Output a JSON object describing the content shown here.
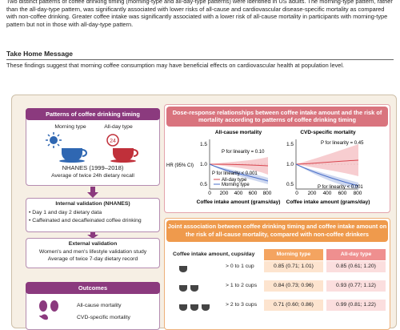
{
  "summary": "Two distinct patterns of coffee drinking timing (morning-type and all-day-type patterns) were identified in US adults. The morning-type pattern, rather than the all-day-type pattern, was significantly associated with lower risks of all-cause and cardiovascular disease-specific mortality as compared with non-coffee drinking. Greater coffee intake was significantly associated with a lower risk of all-cause mortality in participants with morning-type pattern but not in those with all-day-type pattern.",
  "take_home": {
    "title": "Take Home Message",
    "text": "These findings suggest that morning coffee consumption may have beneficial effects on cardiovascular health at population level."
  },
  "left": {
    "patterns": {
      "title": "Patterns of coffee drinking timing",
      "morning": "Morning type",
      "allday": "All-day type",
      "source": "NHANES (1999–2018)",
      "method": "Average of twice 24h dietary recall"
    },
    "internal": {
      "title": "Internal validation (NHANES)",
      "items": [
        "Day 1 and day 2 dietary data",
        "Caffeinated and decaffeinated coffee drinking"
      ]
    },
    "external": {
      "title": "External validation",
      "lines": [
        "Women's and men's lifestyle validation study",
        "Average of twice 7-day dietary record"
      ]
    },
    "outcomes": {
      "title": "Outcomes",
      "items": [
        "All-cause mortality",
        "CVD-specific mortality"
      ]
    }
  },
  "dose": {
    "title": "Dose-response relationships between coffee intake amount and the risk of mortality according to patterns of coffee drinking timing",
    "y_label": "HR (95% CI)",
    "x_label": "Coffee intake amount (grams/day)",
    "yticks": [
      "1.5",
      "1.0",
      "0.5"
    ],
    "xticks": [
      "0",
      "200",
      "400",
      "600",
      "800"
    ],
    "panels": [
      {
        "title": "All-cause mortality",
        "p_top": "P for linearity = 0.10",
        "p_bottom": "P for linearity < 0.001",
        "legend": [
          "All-day type",
          "Morning type"
        ]
      },
      {
        "title": "CVD-specific mortality",
        "p_top": "P for linearity = 0.45",
        "p_bottom": "P for linearity < 0.001"
      }
    ]
  },
  "joint": {
    "title": "Joint association between coffee drinking timing and coffee intake amount on the risk of all-cause mortality, compared with non-coffee drinkers",
    "columns": [
      "Coffee intake amount, cups/day",
      "Morning type",
      "All-day type"
    ],
    "rows": [
      [
        "> 0 to 1 cup",
        "0.85 (0.71; 1.01)",
        "0.85 (0.61; 1.20)"
      ],
      [
        "> 1 to 2 cups",
        "0.84 (0.73; 0.96)",
        "0.93 (0.77; 1.12)"
      ],
      [
        "> 2 to 3 cups",
        "0.71 (0.60; 0.86)",
        "0.99 (0.81; 1.22)"
      ]
    ]
  }
}
